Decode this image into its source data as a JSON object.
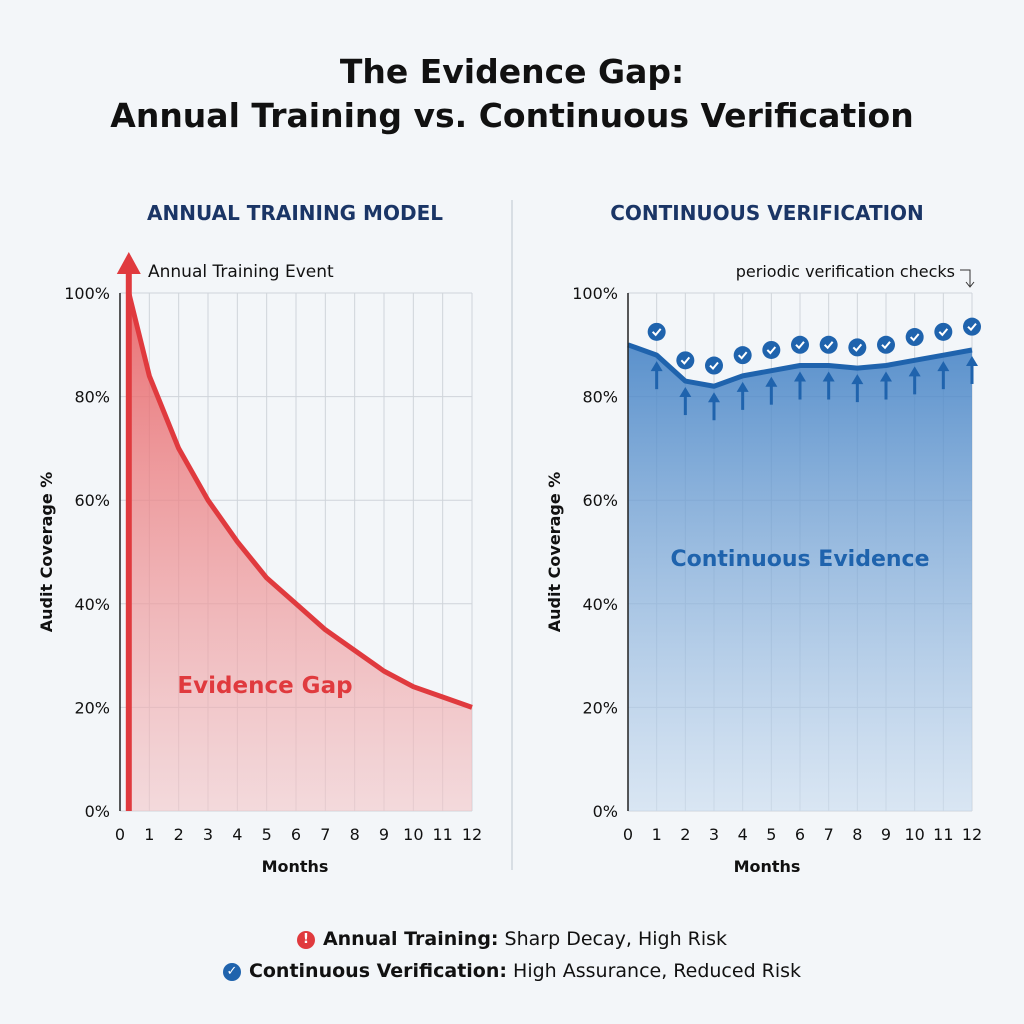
{
  "title_line1": "The Evidence Gap:",
  "title_line2": "Annual Training vs. Continuous Verification",
  "colors": {
    "red": "#e03a3e",
    "blue": "#1f63ad",
    "heading": "#1a3566"
  },
  "chart_data": [
    {
      "type": "area",
      "title": "ANNUAL TRAINING MODEL",
      "xlabel": "Months",
      "ylabel": "Audit Coverage %",
      "xlim": [
        0,
        12
      ],
      "ylim": [
        0,
        100
      ],
      "grid": true,
      "xticks": [
        "0",
        "1",
        "2",
        "3",
        "4",
        "5",
        "6",
        "7",
        "8",
        "9",
        "10",
        "11",
        "12"
      ],
      "yticks": [
        "0%",
        "20%",
        "40%",
        "60%",
        "80%",
        "100%"
      ],
      "x": [
        0.3,
        1,
        2,
        3,
        4,
        5,
        6,
        7,
        8,
        9,
        10,
        11,
        12
      ],
      "values": [
        100,
        84,
        70,
        60,
        52,
        45,
        40,
        35,
        31,
        27,
        24,
        22,
        20
      ],
      "annotations": [
        "Annual Training Event",
        "Evidence Gap"
      ],
      "event_month": 0.3
    },
    {
      "type": "area",
      "title": "CONTINUOUS VERIFICATION",
      "xlabel": "Months",
      "ylabel": "Audit Coverage %",
      "xlim": [
        0,
        12
      ],
      "ylim": [
        0,
        100
      ],
      "grid": true,
      "xticks": [
        "0",
        "1",
        "2",
        "3",
        "4",
        "5",
        "6",
        "7",
        "8",
        "9",
        "10",
        "11",
        "12"
      ],
      "yticks": [
        "0%",
        "20%",
        "40%",
        "60%",
        "80%",
        "100%"
      ],
      "x": [
        0,
        1,
        2,
        3,
        4,
        5,
        6,
        7,
        8,
        9,
        10,
        11,
        12
      ],
      "values": [
        90,
        88,
        83,
        82,
        84,
        85,
        86,
        86,
        85.5,
        86,
        87,
        88,
        89
      ],
      "checks": {
        "x": [
          1,
          2,
          3,
          4,
          5,
          6,
          7,
          8,
          9,
          10,
          11,
          12
        ],
        "values": [
          92.5,
          87,
          86,
          88,
          89,
          90,
          90,
          89.5,
          90,
          91.5,
          92.5,
          93.5
        ]
      },
      "annotations": [
        "periodic verification checks",
        "Continuous Evidence"
      ]
    }
  ],
  "legend": [
    {
      "icon": "alert-icon",
      "bold": "Annual Training:",
      "text": " Sharp Decay, High Risk"
    },
    {
      "icon": "check-icon",
      "bold": "Continuous Verification:",
      "text": " High Assurance, Reduced Risk"
    }
  ]
}
